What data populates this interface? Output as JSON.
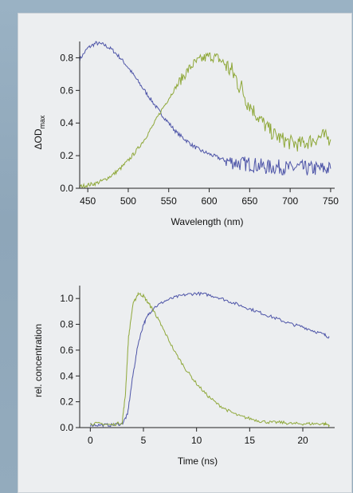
{
  "chart_data": [
    {
      "type": "line",
      "title": "",
      "xlabel": "Wavelength (nm)",
      "ylabel": "ΔOD",
      "ylabel_subscript": "max",
      "xlim": [
        440,
        755
      ],
      "ylim": [
        0.0,
        0.9
      ],
      "xticks": [
        450,
        500,
        550,
        600,
        650,
        700,
        750
      ],
      "yticks": [
        0.0,
        0.2,
        0.4,
        0.6,
        0.8
      ],
      "ytick_labels": [
        "0.0",
        "0.2",
        "0.4",
        "0.6",
        "0.8"
      ],
      "grid": false,
      "series": [
        {
          "color": "#4e55a8",
          "x": [
            440,
            450,
            460,
            470,
            480,
            490,
            500,
            510,
            520,
            530,
            540,
            550,
            560,
            570,
            580,
            590,
            600,
            610,
            620,
            630,
            640,
            650,
            660,
            670,
            680,
            690,
            700,
            710,
            720,
            730,
            740,
            750
          ],
          "y": [
            0.79,
            0.86,
            0.89,
            0.88,
            0.85,
            0.8,
            0.74,
            0.67,
            0.6,
            0.53,
            0.46,
            0.4,
            0.34,
            0.3,
            0.26,
            0.23,
            0.21,
            0.19,
            0.17,
            0.16,
            0.15,
            0.15,
            0.14,
            0.13,
            0.13,
            0.13,
            0.12,
            0.13,
            0.12,
            0.12,
            0.12,
            0.12
          ]
        },
        {
          "color": "#8fa83a",
          "x": [
            440,
            450,
            460,
            470,
            480,
            490,
            500,
            510,
            520,
            530,
            540,
            550,
            560,
            570,
            580,
            590,
            600,
            610,
            620,
            630,
            640,
            650,
            660,
            670,
            680,
            690,
            700,
            710,
            720,
            730,
            740,
            750
          ],
          "y": [
            0.01,
            0.02,
            0.03,
            0.05,
            0.08,
            0.12,
            0.17,
            0.23,
            0.3,
            0.38,
            0.47,
            0.55,
            0.63,
            0.7,
            0.76,
            0.79,
            0.81,
            0.8,
            0.76,
            0.7,
            0.61,
            0.51,
            0.44,
            0.38,
            0.33,
            0.3,
            0.28,
            0.27,
            0.28,
            0.3,
            0.32,
            0.3
          ]
        }
      ]
    },
    {
      "type": "line",
      "title": "",
      "xlabel": "Time (ns)",
      "ylabel": "rel. concentration",
      "xlim": [
        -1,
        23
      ],
      "ylim": [
        0.0,
        1.1
      ],
      "xticks": [
        0,
        5,
        10,
        15,
        20
      ],
      "yticks": [
        0.0,
        0.2,
        0.4,
        0.6,
        0.8,
        1.0
      ],
      "ytick_labels": [
        "0.0",
        "0.2",
        "0.4",
        "0.6",
        "0.8",
        "1.0"
      ],
      "grid": false,
      "series": [
        {
          "color": "#4e55a8",
          "x": [
            0,
            1,
            2,
            3,
            3.5,
            4,
            4.5,
            5,
            5.5,
            6,
            7,
            8,
            9,
            10,
            11,
            12,
            13,
            14,
            15,
            16,
            17,
            18,
            19,
            20,
            21,
            22,
            22.5
          ],
          "y": [
            0.02,
            0.02,
            0.02,
            0.03,
            0.1,
            0.4,
            0.65,
            0.8,
            0.88,
            0.93,
            0.98,
            1.01,
            1.03,
            1.04,
            1.03,
            1.01,
            0.98,
            0.95,
            0.92,
            0.89,
            0.86,
            0.83,
            0.8,
            0.78,
            0.75,
            0.72,
            0.7
          ]
        },
        {
          "color": "#8fa83a",
          "x": [
            0,
            1,
            2,
            3,
            3.3,
            3.6,
            4,
            4.5,
            5,
            5.5,
            6,
            6.5,
            7,
            8,
            9,
            10,
            11,
            12,
            13,
            14,
            15,
            16,
            17,
            18,
            19,
            20,
            21,
            22,
            22.5
          ],
          "y": [
            0.03,
            0.03,
            0.02,
            0.04,
            0.25,
            0.7,
            0.95,
            1.04,
            1.02,
            0.96,
            0.9,
            0.82,
            0.74,
            0.58,
            0.45,
            0.34,
            0.25,
            0.18,
            0.13,
            0.09,
            0.07,
            0.05,
            0.04,
            0.04,
            0.03,
            0.03,
            0.03,
            0.03,
            0.02
          ]
        }
      ]
    }
  ]
}
